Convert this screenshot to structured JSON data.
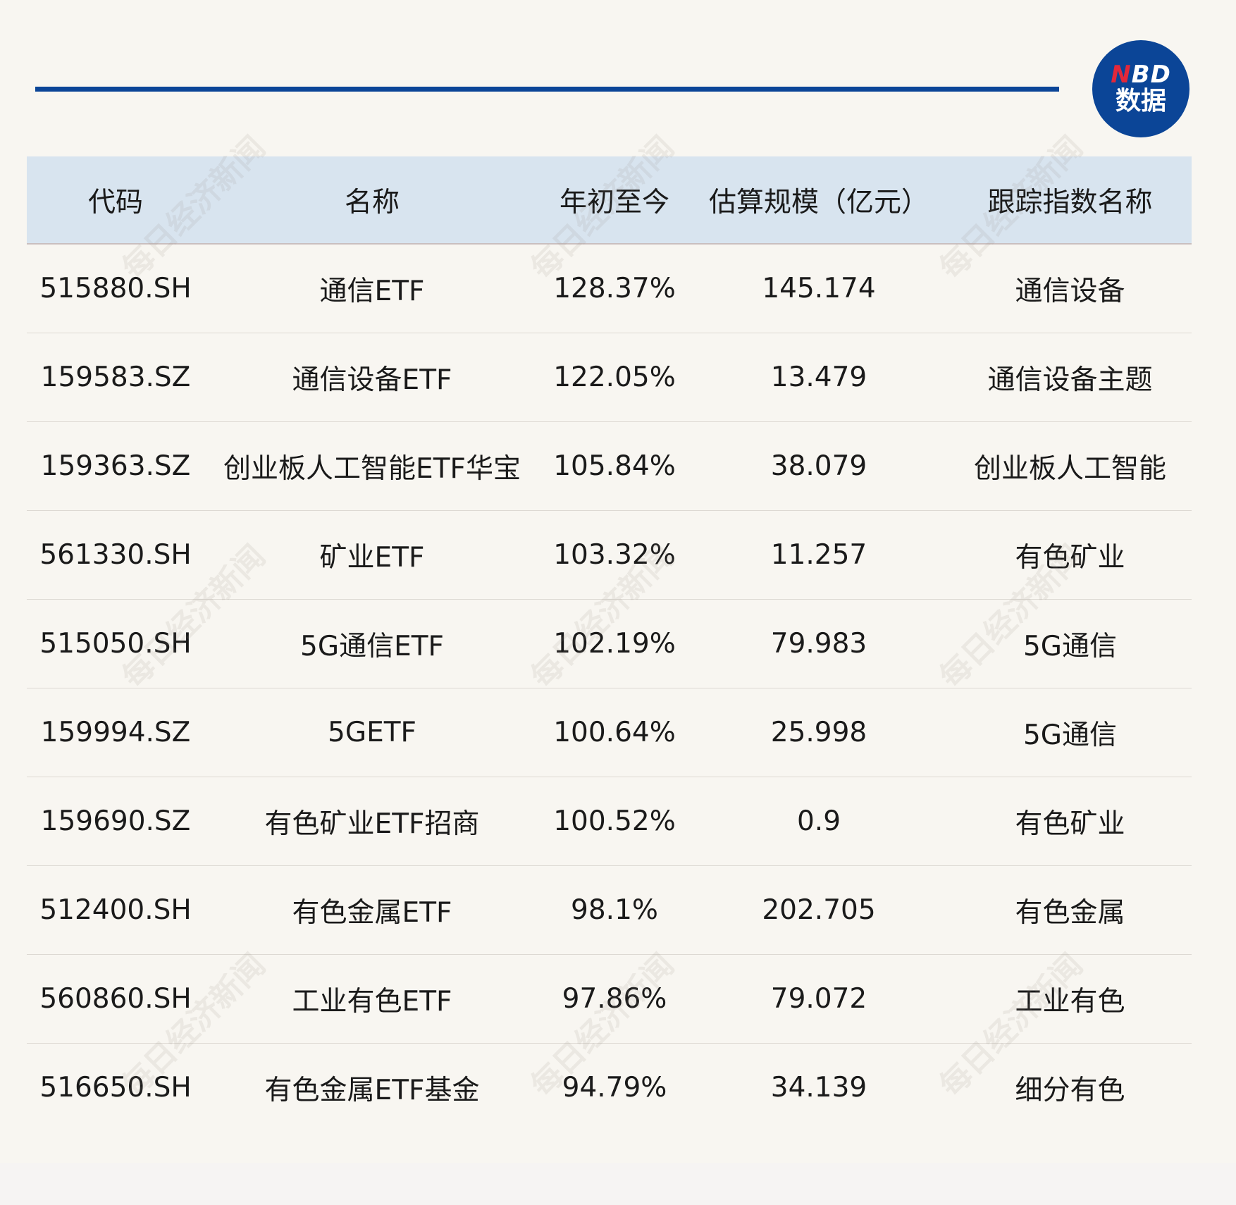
{
  "logo": {
    "line1_n": "N",
    "line1_rest": "BD",
    "line2": "数据"
  },
  "watermark": "每日经济新闻",
  "table": {
    "headers": [
      "代码",
      "名称",
      "年初至今",
      "估算规模（亿元）",
      "跟踪指数名称"
    ],
    "rows": [
      [
        "515880.SH",
        "通信ETF",
        "128.37%",
        "145.174",
        "通信设备"
      ],
      [
        "159583.SZ",
        "通信设备ETF",
        "122.05%",
        "13.479",
        "通信设备主题"
      ],
      [
        "159363.SZ",
        "创业板人工智能ETF华宝",
        "105.84%",
        "38.079",
        "创业板人工智能"
      ],
      [
        "561330.SH",
        "矿业ETF",
        "103.32%",
        "11.257",
        "有色矿业"
      ],
      [
        "515050.SH",
        "5G通信ETF",
        "102.19%",
        "79.983",
        "5G通信"
      ],
      [
        "159994.SZ",
        "5GETF",
        "100.64%",
        "25.998",
        "5G通信"
      ],
      [
        "159690.SZ",
        "有色矿业ETF招商",
        "100.52%",
        "0.9",
        "有色矿业"
      ],
      [
        "512400.SH",
        "有色金属ETF",
        "98.1%",
        "202.705",
        "有色金属"
      ],
      [
        "560860.SH",
        "工业有色ETF",
        "97.86%",
        "79.072",
        "工业有色"
      ],
      [
        "516650.SH",
        "有色金属ETF基金",
        "94.79%",
        "34.139",
        "细分有色"
      ]
    ]
  },
  "colors": {
    "accent": "#0b4597",
    "header_bg": "#d8e4ef",
    "logo_red": "#e3283a",
    "background": "#f8f6f1"
  }
}
